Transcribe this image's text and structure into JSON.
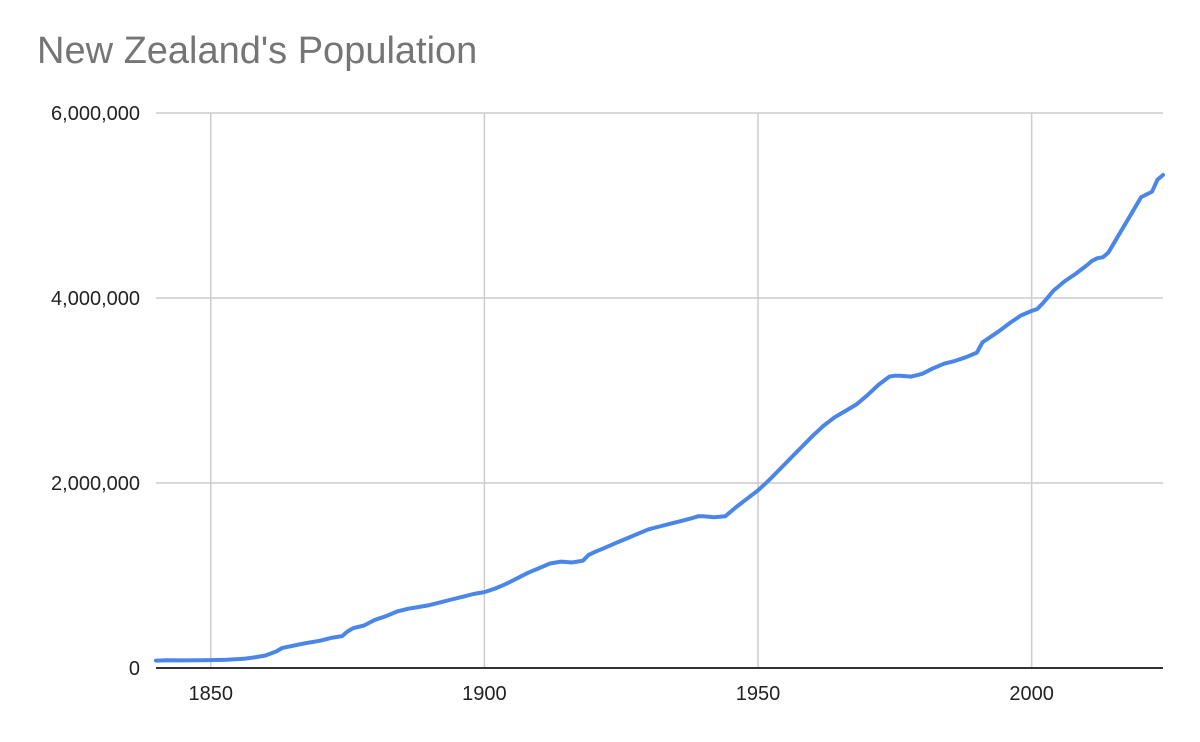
{
  "chart_data": {
    "type": "line",
    "title": "New Zealand's Population",
    "xlabel": "",
    "ylabel": "",
    "xlim": [
      1840,
      2024
    ],
    "ylim": [
      0,
      6000000
    ],
    "x_ticks": [
      1850,
      1900,
      1950,
      2000
    ],
    "x_tick_labels": [
      "1850",
      "1900",
      "1950",
      "2000"
    ],
    "y_ticks": [
      0,
      2000000,
      4000000,
      6000000
    ],
    "y_tick_labels": [
      "0",
      "2,000,000",
      "4,000,000",
      "6,000,000"
    ],
    "grid": true,
    "legend": "none",
    "colors": {
      "line": "#4a86e8",
      "grid": "#cccccc",
      "axis": "#333333",
      "title": "#757575"
    },
    "series": [
      {
        "x": [
          1840,
          1842,
          1845,
          1848,
          1850,
          1853,
          1856,
          1858,
          1860,
          1862,
          1863,
          1865,
          1867,
          1870,
          1872,
          1874,
          1875,
          1876,
          1878,
          1880,
          1882,
          1884,
          1886,
          1888,
          1890,
          1892,
          1894,
          1896,
          1898,
          1900,
          1902,
          1904,
          1906,
          1908,
          1910,
          1912,
          1914,
          1916,
          1918,
          1919,
          1920,
          1922,
          1924,
          1926,
          1928,
          1930,
          1932,
          1934,
          1936,
          1938,
          1939,
          1940,
          1942,
          1944,
          1946,
          1948,
          1950,
          1952,
          1954,
          1956,
          1958,
          1960,
          1962,
          1964,
          1966,
          1968,
          1970,
          1972,
          1974,
          1975,
          1976,
          1978,
          1980,
          1982,
          1984,
          1986,
          1988,
          1990,
          1991,
          1992,
          1994,
          1996,
          1998,
          2000,
          2001,
          2002,
          2003,
          2004,
          2006,
          2008,
          2010,
          2011,
          2012,
          2013,
          2014,
          2016,
          2018,
          2020,
          2021,
          2022,
          2023,
          2024
        ],
        "y": [
          80000,
          84000,
          82000,
          83000,
          85000,
          90000,
          100000,
          115000,
          135000,
          180000,
          215000,
          240000,
          265000,
          295000,
          325000,
          345000,
          395000,
          430000,
          460000,
          520000,
          560000,
          610000,
          640000,
          660000,
          680000,
          710000,
          740000,
          770000,
          800000,
          820000,
          860000,
          910000,
          970000,
          1030000,
          1080000,
          1130000,
          1150000,
          1140000,
          1160000,
          1220000,
          1250000,
          1300000,
          1350000,
          1400000,
          1450000,
          1500000,
          1530000,
          1560000,
          1590000,
          1620000,
          1640000,
          1640000,
          1630000,
          1640000,
          1740000,
          1830000,
          1920000,
          2030000,
          2150000,
          2270000,
          2390000,
          2510000,
          2620000,
          2710000,
          2780000,
          2850000,
          2950000,
          3060000,
          3150000,
          3160000,
          3160000,
          3150000,
          3180000,
          3240000,
          3290000,
          3320000,
          3360000,
          3410000,
          3520000,
          3560000,
          3640000,
          3730000,
          3810000,
          3860000,
          3880000,
          3940000,
          4010000,
          4080000,
          4180000,
          4260000,
          4350000,
          4400000,
          4430000,
          4440000,
          4490000,
          4690000,
          4890000,
          5090000,
          5120000,
          5150000,
          5280000,
          5330000
        ]
      }
    ]
  }
}
